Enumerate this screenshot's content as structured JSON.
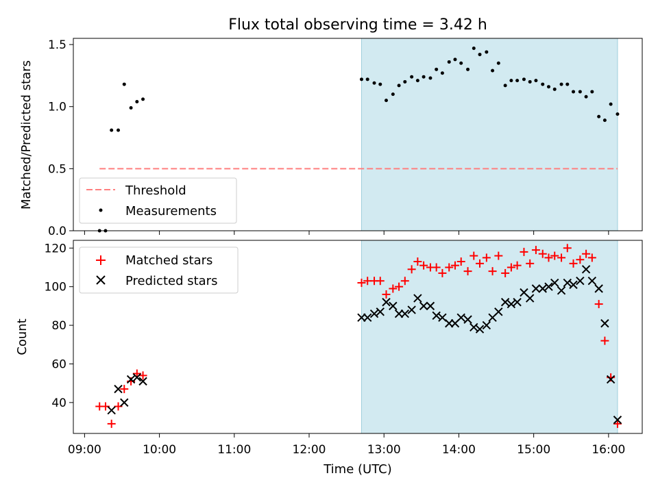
{
  "figure": {
    "title": "Flux total observing time = 3.42 h"
  },
  "colors": {
    "threshold": "#ff7f7f",
    "highlight": "#add8e6",
    "matched": "#ff0000",
    "predicted": "#000000",
    "measurement": "#000000"
  },
  "chart_data": [
    {
      "type": "scatter",
      "ylabel": "Matched/Predicted stars",
      "ylim": [
        0,
        1.55
      ],
      "yticks": [
        0,
        0.5,
        1.0,
        1.5
      ],
      "ytick_labels": [
        "0.0",
        "0.5",
        "1.0",
        "1.5"
      ],
      "threshold": {
        "value": 0.5,
        "x_range": [
          9.2,
          16.12
        ]
      },
      "highlight_span": [
        12.7,
        16.12
      ],
      "legend": {
        "placement": "lower-left",
        "entries": [
          "Threshold",
          "Measurements"
        ]
      },
      "series": [
        {
          "name": "Measurements",
          "points": [
            [
              9.2,
              0.0
            ],
            [
              9.28,
              0.0
            ],
            [
              9.36,
              0.81
            ],
            [
              9.45,
              0.81
            ],
            [
              9.53,
              1.18
            ],
            [
              9.62,
              0.99
            ],
            [
              9.7,
              1.04
            ],
            [
              9.78,
              1.06
            ],
            [
              12.7,
              1.22
            ],
            [
              12.78,
              1.22
            ],
            [
              12.87,
              1.19
            ],
            [
              12.95,
              1.18
            ],
            [
              13.03,
              1.05
            ],
            [
              13.12,
              1.1
            ],
            [
              13.2,
              1.17
            ],
            [
              13.28,
              1.2
            ],
            [
              13.37,
              1.24
            ],
            [
              13.45,
              1.21
            ],
            [
              13.53,
              1.24
            ],
            [
              13.62,
              1.23
            ],
            [
              13.7,
              1.3
            ],
            [
              13.78,
              1.27
            ],
            [
              13.87,
              1.36
            ],
            [
              13.95,
              1.38
            ],
            [
              14.03,
              1.35
            ],
            [
              14.12,
              1.3
            ],
            [
              14.2,
              1.47
            ],
            [
              14.28,
              1.42
            ],
            [
              14.37,
              1.44
            ],
            [
              14.45,
              1.29
            ],
            [
              14.53,
              1.35
            ],
            [
              14.62,
              1.17
            ],
            [
              14.7,
              1.21
            ],
            [
              14.78,
              1.21
            ],
            [
              14.87,
              1.22
            ],
            [
              14.95,
              1.2
            ],
            [
              15.03,
              1.21
            ],
            [
              15.12,
              1.18
            ],
            [
              15.2,
              1.16
            ],
            [
              15.28,
              1.14
            ],
            [
              15.37,
              1.18
            ],
            [
              15.45,
              1.18
            ],
            [
              15.53,
              1.12
            ],
            [
              15.62,
              1.12
            ],
            [
              15.7,
              1.08
            ],
            [
              15.78,
              1.12
            ],
            [
              15.87,
              0.92
            ],
            [
              15.95,
              0.89
            ],
            [
              16.03,
              1.02
            ],
            [
              16.12,
              0.94
            ]
          ]
        }
      ]
    },
    {
      "type": "scatter",
      "xlabel": "Time (UTC)",
      "ylabel": "Count",
      "xlim": [
        8.85,
        16.45
      ],
      "ylim": [
        24,
        124
      ],
      "yticks": [
        40,
        60,
        80,
        100,
        120
      ],
      "xticks": [
        9,
        10,
        11,
        12,
        13,
        14,
        15,
        16
      ],
      "xtick_labels": [
        "09:00",
        "10:00",
        "11:00",
        "12:00",
        "13:00",
        "14:00",
        "15:00",
        "16:00"
      ],
      "highlight_span": [
        12.7,
        16.12
      ],
      "legend": {
        "placement": "top-left",
        "entries": [
          "Matched stars",
          "Predicted stars"
        ]
      },
      "series": [
        {
          "name": "Matched stars",
          "marker": "+",
          "points": [
            [
              9.2,
              38
            ],
            [
              9.28,
              38
            ],
            [
              9.36,
              29
            ],
            [
              9.45,
              38
            ],
            [
              9.53,
              47
            ],
            [
              9.62,
              51
            ],
            [
              9.7,
              55
            ],
            [
              9.78,
              54
            ],
            [
              12.7,
              102
            ],
            [
              12.78,
              103
            ],
            [
              12.87,
              103
            ],
            [
              12.95,
              103
            ],
            [
              13.03,
              96
            ],
            [
              13.12,
              99
            ],
            [
              13.2,
              100
            ],
            [
              13.28,
              103
            ],
            [
              13.37,
              109
            ],
            [
              13.45,
              113
            ],
            [
              13.53,
              111
            ],
            [
              13.62,
              110
            ],
            [
              13.7,
              110
            ],
            [
              13.78,
              107
            ],
            [
              13.87,
              110
            ],
            [
              13.95,
              111
            ],
            [
              14.03,
              113
            ],
            [
              14.12,
              108
            ],
            [
              14.2,
              116
            ],
            [
              14.28,
              112
            ],
            [
              14.37,
              115
            ],
            [
              14.45,
              108
            ],
            [
              14.53,
              116
            ],
            [
              14.62,
              107
            ],
            [
              14.7,
              110
            ],
            [
              14.78,
              111
            ],
            [
              14.87,
              118
            ],
            [
              14.95,
              112
            ],
            [
              15.03,
              119
            ],
            [
              15.12,
              117
            ],
            [
              15.2,
              115
            ],
            [
              15.28,
              116
            ],
            [
              15.37,
              115
            ],
            [
              15.45,
              120
            ],
            [
              15.53,
              112
            ],
            [
              15.62,
              114
            ],
            [
              15.7,
              117
            ],
            [
              15.78,
              115
            ],
            [
              15.87,
              91
            ],
            [
              15.95,
              72
            ],
            [
              16.03,
              53
            ],
            [
              16.12,
              29
            ]
          ]
        },
        {
          "name": "Predicted stars",
          "marker": "x",
          "points": [
            [
              9.36,
              36
            ],
            [
              9.45,
              47
            ],
            [
              9.53,
              40
            ],
            [
              9.62,
              52
            ],
            [
              9.7,
              53
            ],
            [
              9.78,
              51
            ],
            [
              12.7,
              84
            ],
            [
              12.78,
              84
            ],
            [
              12.87,
              86
            ],
            [
              12.95,
              87
            ],
            [
              13.03,
              92
            ],
            [
              13.12,
              90
            ],
            [
              13.2,
              86
            ],
            [
              13.28,
              86
            ],
            [
              13.37,
              88
            ],
            [
              13.45,
              94
            ],
            [
              13.53,
              90
            ],
            [
              13.62,
              90
            ],
            [
              13.7,
              85
            ],
            [
              13.78,
              84
            ],
            [
              13.87,
              81
            ],
            [
              13.95,
              81
            ],
            [
              14.03,
              84
            ],
            [
              14.12,
              83
            ],
            [
              14.2,
              79
            ],
            [
              14.28,
              78
            ],
            [
              14.37,
              80
            ],
            [
              14.45,
              84
            ],
            [
              14.53,
              87
            ],
            [
              14.62,
              92
            ],
            [
              14.7,
              91
            ],
            [
              14.78,
              92
            ],
            [
              14.87,
              97
            ],
            [
              14.95,
              94
            ],
            [
              15.03,
              99
            ],
            [
              15.12,
              99
            ],
            [
              15.2,
              100
            ],
            [
              15.28,
              102
            ],
            [
              15.37,
              98
            ],
            [
              15.45,
              102
            ],
            [
              15.53,
              101
            ],
            [
              15.62,
              103
            ],
            [
              15.7,
              109
            ],
            [
              15.78,
              103
            ],
            [
              15.87,
              99
            ],
            [
              15.95,
              81
            ],
            [
              16.03,
              52
            ],
            [
              16.12,
              31
            ]
          ]
        }
      ]
    }
  ]
}
